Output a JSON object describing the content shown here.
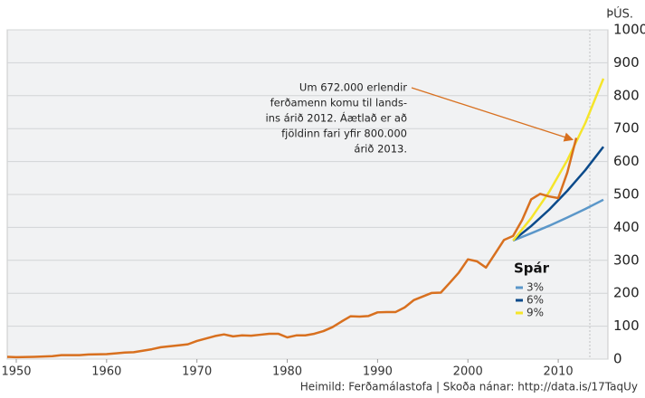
{
  "chart_data": {
    "type": "line",
    "unit_label": "ÞÚS.",
    "source": "Heimild: Ferðamálastofa | Skoða nánar: http://data.is/17TaqUy",
    "annotation": [
      "Um 672.000 erlendir",
      "ferðamenn komu til lands-",
      "ins árið 2012. Áætlað er að",
      "fjöldinn fari yfir 800.000",
      "árið 2013."
    ],
    "legend_title": "Spár",
    "xlim": [
      1949,
      2015.5
    ],
    "xticks": [
      1950,
      1960,
      1970,
      1980,
      1990,
      2000,
      2010
    ],
    "ylim": [
      0,
      1000
    ],
    "yticks": [
      0,
      100,
      200,
      300,
      400,
      500,
      600,
      700,
      800,
      900,
      1000
    ],
    "grid": true,
    "series": [
      {
        "color": "#d8701f",
        "x": [
          1949,
          1950,
          1952,
          1954,
          1955,
          1957,
          1958,
          1960,
          1962,
          1963,
          1965,
          1966,
          1968,
          1969,
          1970,
          1972,
          1973,
          1974,
          1975,
          1976,
          1977,
          1978,
          1979,
          1980,
          1981,
          1982,
          1983,
          1984,
          1985,
          1986,
          1987,
          1988,
          1989,
          1990,
          1991,
          1992,
          1993,
          1994,
          1995,
          1996,
          1997,
          1998,
          1999,
          2000,
          2001,
          2002,
          2003,
          2004,
          2005,
          2006,
          2007,
          2008,
          2009,
          2010,
          2011,
          2012
        ],
        "values": [
          7,
          6,
          7,
          9,
          12,
          12,
          14,
          15,
          20,
          21,
          30,
          36,
          42,
          45,
          55,
          70,
          75,
          69,
          72,
          71,
          74,
          77,
          77,
          66,
          72,
          72,
          77,
          85,
          97,
          114,
          130,
          129,
          131,
          142,
          143,
          143,
          157,
          179,
          190,
          201,
          202,
          232,
          263,
          303,
          297,
          278,
          320,
          362,
          374,
          422,
          485,
          502,
          494,
          489,
          566,
          672
        ]
      },
      {
        "name": "3%",
        "color": "#5b97c9",
        "x": [
          2005,
          2007,
          2009,
          2011,
          2013,
          2015
        ],
        "values": [
          360,
          382,
          405,
          430,
          456,
          484
        ]
      },
      {
        "name": "6%",
        "color": "#0b4a8a",
        "x": [
          2005,
          2007,
          2009,
          2011,
          2013,
          2015
        ],
        "values": [
          360,
          404,
          454,
          511,
          574,
          645
        ]
      },
      {
        "name": "9%",
        "color": "#f5e52a",
        "x": [
          2005,
          2007,
          2009,
          2011,
          2013,
          2015
        ],
        "values": [
          360,
          428,
          508,
          604,
          717,
          852
        ]
      }
    ]
  }
}
